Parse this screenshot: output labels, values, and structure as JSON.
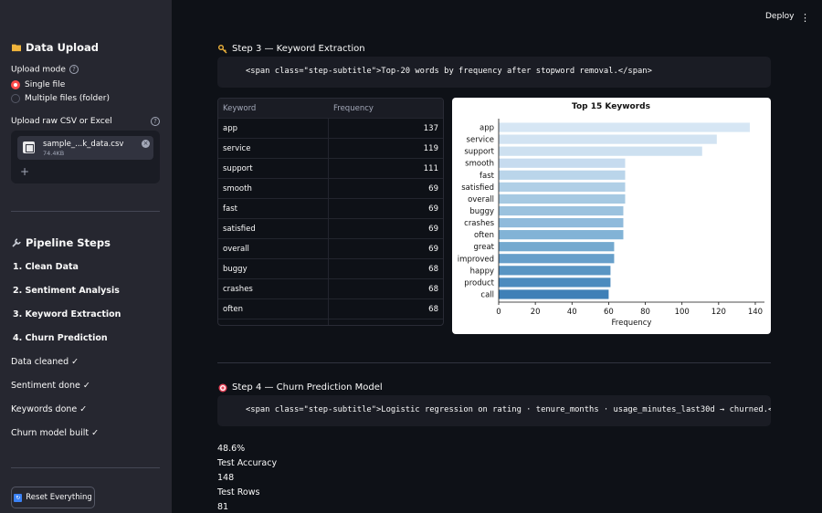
{
  "sidebar": {
    "upload_title": "Data Upload",
    "upload_mode_label": "Upload mode",
    "radio_options": [
      "Single file",
      "Multiple files (folder)"
    ],
    "selected_mode": "Single file",
    "upload_label": "Upload raw CSV or Excel",
    "file_name": "sample_...k_data.csv",
    "file_size": "74.4KB",
    "pipeline_title": "Pipeline Steps",
    "steps": [
      "1. Clean Data",
      "2. Sentiment Analysis",
      "3. Keyword Extraction",
      "4. Churn Prediction"
    ],
    "status": [
      "Data cleaned ✓",
      "Sentiment done ✓",
      "Keywords done ✓",
      "Churn model built ✓"
    ],
    "reset_label": "Reset Everything"
  },
  "header": {
    "deploy_label": "Deploy"
  },
  "step3": {
    "title": "Step 3 — Keyword Extraction",
    "code": "<span class=\"step-subtitle\">Top-20 words by frequency after stopword removal.</span>",
    "table": {
      "headers": [
        "Keyword",
        "Frequency"
      ],
      "rows": [
        [
          "app",
          "137"
        ],
        [
          "service",
          "119"
        ],
        [
          "support",
          "111"
        ],
        [
          "smooth",
          "69"
        ],
        [
          "fast",
          "69"
        ],
        [
          "satisfied",
          "69"
        ],
        [
          "overall",
          "69"
        ],
        [
          "buggy",
          "68"
        ],
        [
          "crashes",
          "68"
        ],
        [
          "often",
          "68"
        ]
      ]
    }
  },
  "chart_data": {
    "type": "bar",
    "orientation": "horizontal",
    "title": "Top 15 Keywords",
    "xlabel": "Frequency",
    "ylabel": "",
    "categories": [
      "app",
      "service",
      "support",
      "smooth",
      "fast",
      "satisfied",
      "overall",
      "buggy",
      "crashes",
      "often",
      "great",
      "improved",
      "happy",
      "product",
      "call"
    ],
    "values": [
      137,
      119,
      111,
      69,
      69,
      69,
      69,
      68,
      68,
      68,
      63,
      63,
      61,
      61,
      60
    ],
    "xlim": [
      0,
      145
    ],
    "xticks": [
      0,
      20,
      40,
      60,
      80,
      100,
      120,
      140
    ],
    "grid": false
  },
  "step4": {
    "title": "Step 4 — Churn Prediction Model",
    "code": "<span class=\"step-subtitle\">Logistic regression on rating · tenure_months · usage_minutes_last30d → churned.</span>",
    "metrics": [
      "48.6%",
      "Test Accuracy",
      "148",
      "Test Rows",
      "81"
    ]
  }
}
